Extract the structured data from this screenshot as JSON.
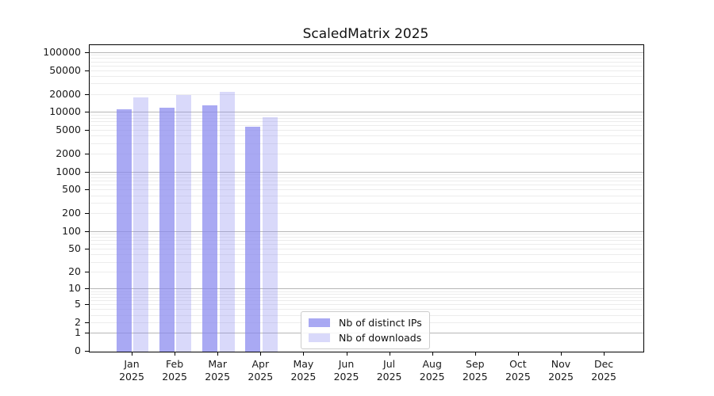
{
  "chart_data": {
    "type": "bar",
    "title": "ScaledMatrix 2025",
    "categories": [
      "Jan",
      "Feb",
      "Mar",
      "Apr",
      "May",
      "Jun",
      "Jul",
      "Aug",
      "Sep",
      "Oct",
      "Nov",
      "Dec"
    ],
    "year_label": "2025",
    "y_ticks": [
      100000,
      50000,
      20000,
      10000,
      5000,
      2000,
      1000,
      500,
      200,
      100,
      50,
      20,
      10,
      5,
      2,
      1,
      0
    ],
    "y_scale": "log1p",
    "y_max": 135000,
    "grid": "both",
    "legend_position": "lower center",
    "series": [
      {
        "name": "Nb of distinct IPs",
        "color": "#8888ee",
        "opacity": 0.72,
        "values": [
          11300,
          12200,
          13400,
          5900,
          0,
          0,
          0,
          0,
          0,
          0,
          0,
          0
        ]
      },
      {
        "name": "Nb of downloads",
        "color": "#8888ee",
        "opacity": 0.32,
        "values": [
          17800,
          19500,
          22200,
          8500,
          0,
          0,
          0,
          0,
          0,
          0,
          0,
          0
        ]
      }
    ],
    "colors": {
      "grid_minor": "#ececec",
      "grid_major": "#b7b7b7",
      "axis": "#000000",
      "text": "#1a1a1a"
    }
  }
}
